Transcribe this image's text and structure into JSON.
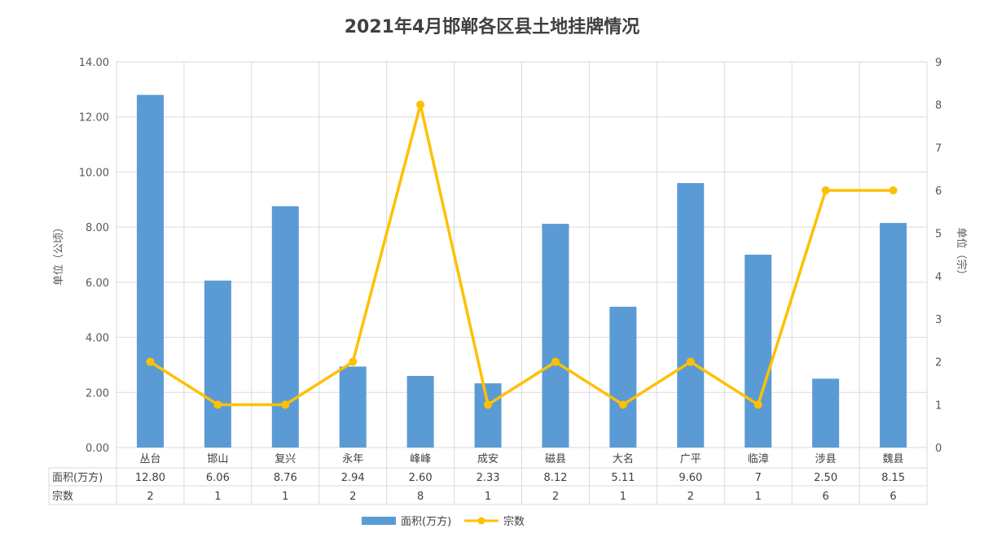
{
  "chart_data": {
    "type": "bar",
    "title": "2021年4月邯郸各区县土地挂牌情况",
    "ylabel_left": "单位（公顷）",
    "ylabel_right": "单位（宗）",
    "ylim_left": [
      0,
      14
    ],
    "ylim_right": [
      0,
      9
    ],
    "yticks_left": [
      "0.00",
      "2.00",
      "4.00",
      "6.00",
      "8.00",
      "10.00",
      "12.00",
      "14.00"
    ],
    "yticks_right": [
      "0",
      "1",
      "2",
      "3",
      "4",
      "5",
      "6",
      "7",
      "8",
      "9"
    ],
    "categories": [
      "丛台",
      "邯山",
      "复兴",
      "永年",
      "峰峰",
      "成安",
      "磁县",
      "大名",
      "广平",
      "临漳",
      "涉县",
      "魏县"
    ],
    "series": [
      {
        "name": "面积(万方)",
        "type": "bar",
        "axis": "left",
        "color": "#5b9bd5",
        "values": [
          12.8,
          6.06,
          8.76,
          2.94,
          2.6,
          2.33,
          8.12,
          5.11,
          9.6,
          7,
          2.5,
          8.15
        ],
        "labels": [
          "12.80",
          "6.06",
          "8.76",
          "2.94",
          "2.60",
          "2.33",
          "8.12",
          "5.11",
          "9.60",
          "7",
          "2.50",
          "8.15"
        ]
      },
      {
        "name": "宗数",
        "type": "line",
        "axis": "right",
        "color": "#ffc000",
        "values": [
          2,
          1,
          1,
          2,
          8,
          1,
          2,
          1,
          2,
          1,
          6,
          6
        ],
        "labels": [
          "2",
          "1",
          "1",
          "2",
          "8",
          "1",
          "2",
          "1",
          "2",
          "1",
          "6",
          "6"
        ]
      }
    ],
    "grid": true,
    "legend": "bottom",
    "data_table": true
  }
}
